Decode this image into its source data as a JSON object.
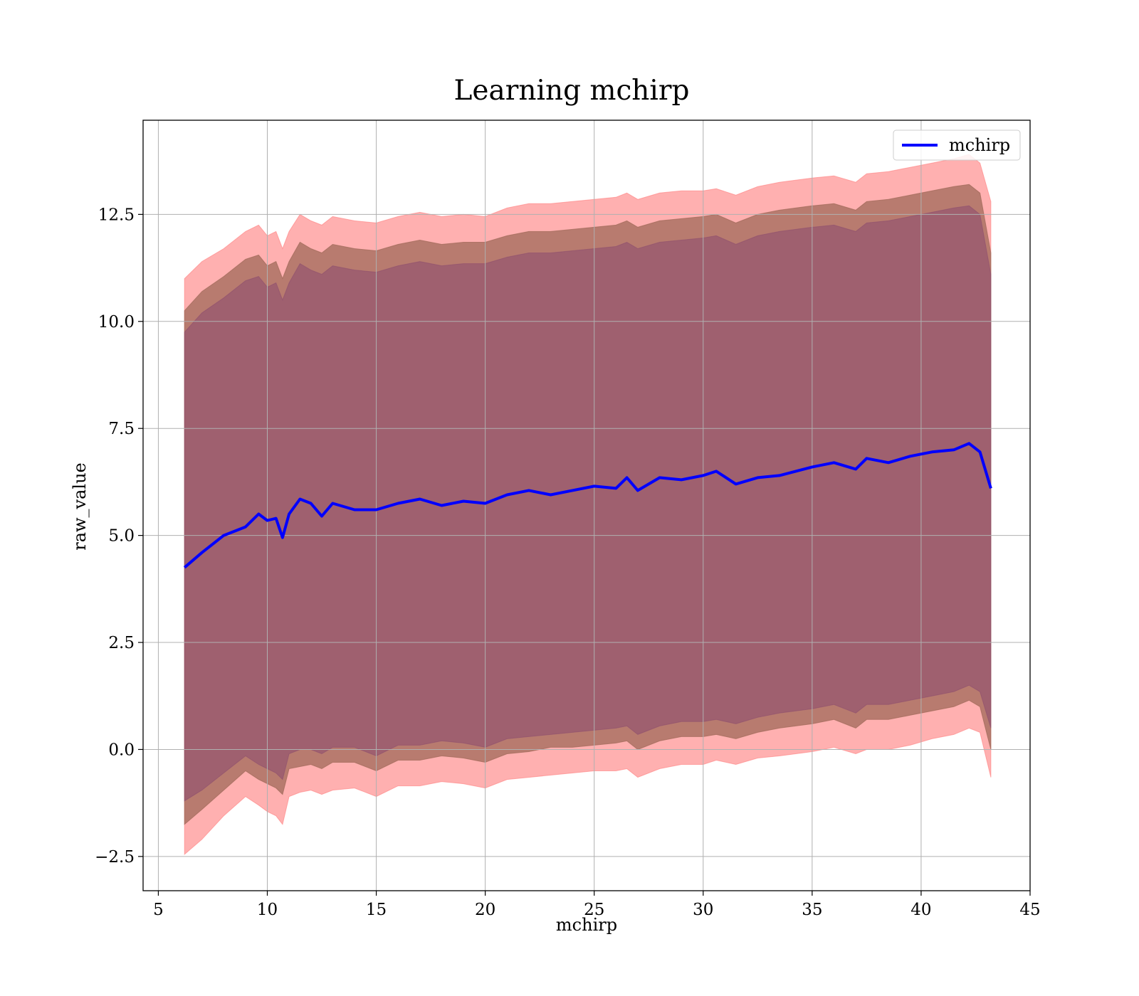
{
  "chart_data": {
    "type": "area",
    "title": "Learning mchirp",
    "xlabel": "mchirp",
    "ylabel": "raw_value",
    "xlim": [
      4.3,
      45
    ],
    "ylim": [
      -3.3,
      14.7
    ],
    "xticks": [
      5,
      10,
      15,
      20,
      25,
      30,
      35,
      40,
      45
    ],
    "yticks": [
      -2.5,
      0.0,
      2.5,
      5.0,
      7.5,
      10.0,
      12.5
    ],
    "ytick_labels": [
      "−2.5",
      "0.0",
      "2.5",
      "5.0",
      "7.5",
      "10.0",
      "12.5"
    ],
    "xtick_labels": [
      "5",
      "10",
      "15",
      "20",
      "25",
      "30",
      "35",
      "40",
      "45"
    ],
    "grid": true,
    "legend": {
      "position": "top-right",
      "entries": [
        "mchirp"
      ]
    },
    "colors": {
      "line": "#0000ff",
      "band_outer": "#ff7f7f",
      "band_middle": "#a06a5a",
      "band_inner": "#8a4a70",
      "grid": "#b0b0b0"
    },
    "x": [
      6.2,
      7.0,
      8.0,
      9.0,
      9.6,
      10.0,
      10.4,
      10.7,
      11.0,
      11.5,
      12.0,
      12.5,
      13.0,
      14.0,
      15.0,
      16.0,
      17.0,
      18.0,
      19.0,
      20.0,
      21.0,
      22.0,
      23.0,
      24.0,
      25.0,
      26.0,
      26.5,
      27.0,
      28.0,
      29.0,
      30.0,
      30.6,
      31.5,
      32.5,
      33.5,
      35.0,
      36.0,
      37.0,
      37.5,
      38.5,
      39.5,
      40.5,
      41.5,
      42.2,
      42.7,
      43.2
    ],
    "series": [
      {
        "name": "mchirp",
        "values": [
          4.25,
          4.6,
          5.0,
          5.2,
          5.5,
          5.35,
          5.4,
          4.95,
          5.5,
          5.85,
          5.75,
          5.45,
          5.75,
          5.6,
          5.6,
          5.75,
          5.85,
          5.7,
          5.8,
          5.75,
          5.95,
          6.05,
          5.95,
          6.05,
          6.15,
          6.1,
          6.35,
          6.05,
          6.35,
          6.3,
          6.4,
          6.5,
          6.2,
          6.35,
          6.4,
          6.6,
          6.7,
          6.55,
          6.8,
          6.7,
          6.85,
          6.95,
          7.0,
          7.15,
          6.95,
          6.1
        ]
      }
    ],
    "bands": [
      {
        "lower": [
          -2.45,
          -2.1,
          -1.55,
          -1.1,
          -1.3,
          -1.45,
          -1.55,
          -1.75,
          -1.1,
          -1.0,
          -0.95,
          -1.05,
          -0.95,
          -0.9,
          -1.1,
          -0.85,
          -0.85,
          -0.75,
          -0.8,
          -0.9,
          -0.7,
          -0.65,
          -0.6,
          -0.55,
          -0.5,
          -0.5,
          -0.45,
          -0.65,
          -0.45,
          -0.35,
          -0.35,
          -0.25,
          -0.35,
          -0.2,
          -0.15,
          -0.05,
          0.05,
          -0.1,
          0.0,
          0.0,
          0.1,
          0.25,
          0.35,
          0.5,
          0.4,
          -0.65
        ],
        "upper": [
          11.0,
          11.4,
          11.7,
          12.1,
          12.25,
          12.0,
          12.1,
          11.7,
          12.1,
          12.5,
          12.35,
          12.25,
          12.45,
          12.35,
          12.3,
          12.45,
          12.55,
          12.45,
          12.5,
          12.45,
          12.65,
          12.75,
          12.75,
          12.8,
          12.85,
          12.9,
          13.0,
          12.85,
          13.0,
          13.05,
          13.05,
          13.1,
          12.95,
          13.15,
          13.25,
          13.35,
          13.4,
          13.25,
          13.45,
          13.5,
          13.6,
          13.7,
          13.8,
          13.9,
          13.7,
          12.8
        ]
      },
      {
        "lower": [
          -1.75,
          -1.4,
          -0.95,
          -0.5,
          -0.7,
          -0.8,
          -0.9,
          -1.05,
          -0.45,
          -0.4,
          -0.35,
          -0.45,
          -0.3,
          -0.3,
          -0.5,
          -0.25,
          -0.25,
          -0.15,
          -0.2,
          -0.3,
          -0.1,
          -0.05,
          0.05,
          0.05,
          0.1,
          0.15,
          0.2,
          0.0,
          0.2,
          0.3,
          0.3,
          0.35,
          0.25,
          0.4,
          0.5,
          0.6,
          0.7,
          0.5,
          0.7,
          0.7,
          0.8,
          0.9,
          1.0,
          1.15,
          1.0,
          0.0
        ],
        "upper": [
          10.25,
          10.7,
          11.05,
          11.45,
          11.55,
          11.3,
          11.4,
          11.0,
          11.4,
          11.85,
          11.7,
          11.6,
          11.8,
          11.7,
          11.65,
          11.8,
          11.9,
          11.8,
          11.85,
          11.85,
          12.0,
          12.1,
          12.1,
          12.15,
          12.2,
          12.25,
          12.35,
          12.2,
          12.35,
          12.4,
          12.45,
          12.5,
          12.3,
          12.5,
          12.6,
          12.7,
          12.75,
          12.6,
          12.8,
          12.85,
          12.95,
          13.05,
          13.15,
          13.2,
          13.0,
          11.6
        ]
      },
      {
        "lower": [
          -1.2,
          -0.95,
          -0.55,
          -0.15,
          -0.35,
          -0.45,
          -0.55,
          -0.7,
          -0.1,
          0.0,
          0.0,
          -0.1,
          0.05,
          0.05,
          -0.15,
          0.1,
          0.1,
          0.2,
          0.15,
          0.05,
          0.25,
          0.3,
          0.35,
          0.4,
          0.45,
          0.5,
          0.55,
          0.35,
          0.55,
          0.65,
          0.65,
          0.7,
          0.6,
          0.75,
          0.85,
          0.95,
          1.05,
          0.85,
          1.05,
          1.05,
          1.15,
          1.25,
          1.35,
          1.5,
          1.35,
          0.5
        ]
      }
    ]
  }
}
